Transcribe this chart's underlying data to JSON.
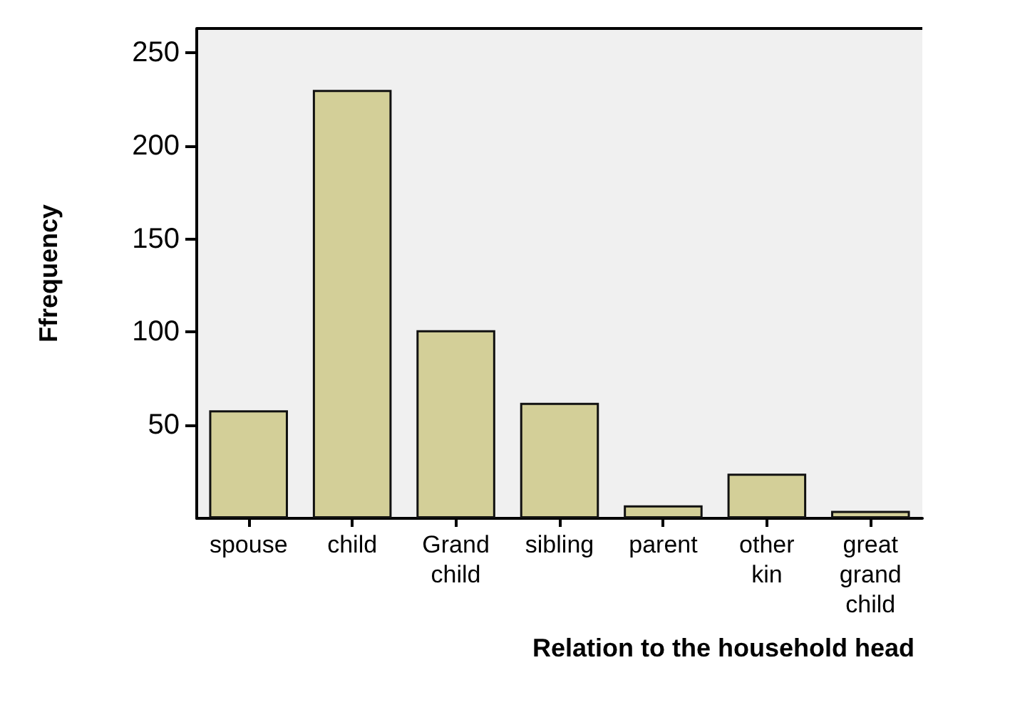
{
  "chart_data": {
    "type": "bar",
    "xlabel": "Relation to the household head",
    "ylabel": "Ffrequency",
    "categories": [
      "spouse",
      "child",
      "Grand child",
      "sibling",
      "parent",
      "other kin",
      "great grand child"
    ],
    "values": [
      58,
      230,
      101,
      62,
      7,
      24,
      4
    ],
    "color": "#d3cf98",
    "ylim": [
      0,
      263
    ],
    "yticks": [
      50,
      100,
      150,
      200,
      250
    ],
    "grid": false
  }
}
